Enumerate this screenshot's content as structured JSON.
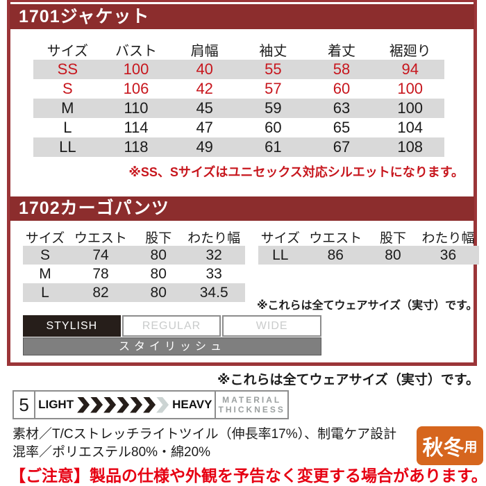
{
  "colors": {
    "box_border": "#9B3538",
    "header_bar": "#8C2D2D",
    "stripe": "#D9D9D9",
    "size_red": "#C7161D",
    "notice_red": "#E60012",
    "badge_orange": "#D6661E",
    "fit_dark": "#261E1A",
    "fit_gray": "#7F7F7F",
    "muted_gray": "#9BA0A0",
    "box_gray": "#8C8C8C",
    "inactive_text": "#C9CBCB",
    "text_black": "#1B1B1B",
    "chevron_light": "#CCD4D3"
  },
  "jacket": {
    "title": "1701ジャケット",
    "table": {
      "headers": [
        "サイズ",
        "バスト",
        "肩幅",
        "袖丈",
        "着丈",
        "裾廻り"
      ],
      "rows": [
        {
          "size": "SS",
          "values": [
            "100",
            "40",
            "55",
            "58",
            "94"
          ]
        },
        {
          "size": "S",
          "values": [
            "106",
            "42",
            "57",
            "60",
            "100"
          ]
        },
        {
          "size": "M",
          "values": [
            "110",
            "45",
            "59",
            "63",
            "100"
          ]
        },
        {
          "size": "L",
          "values": [
            "114",
            "47",
            "60",
            "65",
            "104"
          ]
        },
        {
          "size": "LL",
          "values": [
            "118",
            "49",
            "61",
            "67",
            "108"
          ]
        }
      ]
    },
    "note": "※SS、Sサイズはユニセックス対応シルエットになります。"
  },
  "pants": {
    "title": "1702カーゴパンツ",
    "left_table": {
      "headers": [
        "サイズ",
        "ウエスト",
        "股下",
        "わたり幅"
      ],
      "rows": [
        {
          "size": "S",
          "values": [
            "74",
            "80",
            "32"
          ]
        },
        {
          "size": "M",
          "values": [
            "78",
            "80",
            "33"
          ]
        },
        {
          "size": "L",
          "values": [
            "82",
            "80",
            "34.5"
          ]
        }
      ]
    },
    "right_table": {
      "headers": [
        "サイズ",
        "ウエスト",
        "股下",
        "わたり幅"
      ],
      "rows": [
        {
          "size": "LL",
          "values": [
            "86",
            "80",
            "36"
          ]
        }
      ]
    },
    "note": "※これらは全てウェアサイズ（実寸）です。"
  },
  "fit": {
    "options": [
      "STYLISH",
      "REGULAR",
      "WIDE"
    ],
    "selected": "STYLISH",
    "selected_ja": "スタイリッシュ"
  },
  "outer_note": "※これらは全てウェアサイズ（実寸）です。",
  "thickness": {
    "rating": "5",
    "light_label": "LIGHT",
    "heavy_label": "HEAVY",
    "title_line1": "MATERIAL",
    "title_line2": "THICKNESS",
    "chevrons_total": 7,
    "chevrons_filled": 6
  },
  "material": {
    "line1": "素材／T/Cストレッチライトツイル（伸長率17%）、制電ケア設計",
    "line2": "混率／ポリエステル80%・綿20%",
    "season_main": "秋冬",
    "season_sub": "用"
  },
  "notice": "【ご注意】製品の仕様や外観を予告なく変更する場合があります。"
}
